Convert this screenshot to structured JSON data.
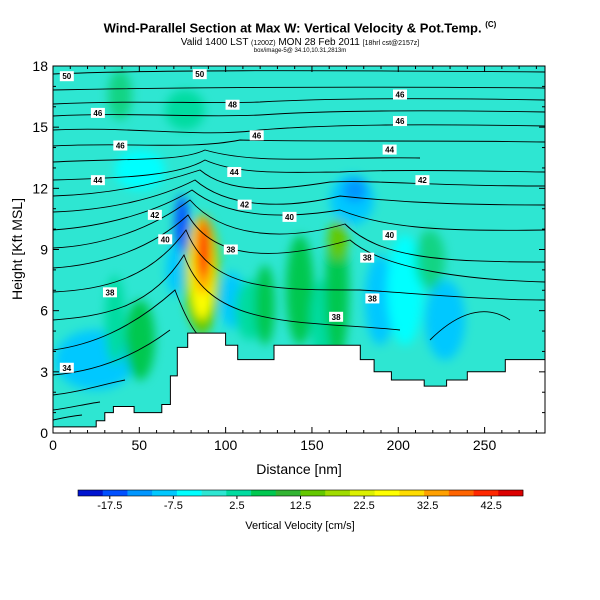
{
  "header": {
    "title": "Wind-Parallel Section at Max W: Vertical Velocity & Pot.Temp.",
    "title_tag": "(C)",
    "subtitle": "Valid 1400 LST",
    "subtitle_mid": "(1200Z)",
    "subtitle_main": "MON 28 Feb 2011",
    "subtitle_small": "[18hrl cst@2157z]",
    "meta": "box/image-5@ 34.10,10.31,2813m"
  },
  "chart_data": {
    "type": "heatmap",
    "title": "Wind-Parallel Section at Max W: Vertical Velocity & Pot.Temp.",
    "xlabel": "Distance [nm]",
    "ylabel": "Height [Kft MSL]",
    "xlim": [
      0,
      285
    ],
    "ylim": [
      0,
      18
    ],
    "xticks": [
      "0",
      "50",
      "100",
      "150",
      "200",
      "250"
    ],
    "xtick_values": [
      0,
      50,
      100,
      150,
      200,
      250
    ],
    "yticks": [
      "0",
      "3",
      "6",
      "9",
      "12",
      "15",
      "18"
    ],
    "ytick_values": [
      0,
      3,
      6,
      9,
      12,
      15,
      18
    ],
    "colorbar": {
      "label": "Vertical Velocity [cm/s]",
      "min": -22.5,
      "max": 47.5,
      "ticks": [
        "-17.5",
        "-7.5",
        "2.5",
        "12.5",
        "22.5",
        "32.5",
        "42.5"
      ],
      "tick_values": [
        -17.5,
        -7.5,
        2.5,
        12.5,
        22.5,
        32.5,
        42.5
      ],
      "colors": [
        "#0014d0",
        "#0050ff",
        "#0096ff",
        "#00c8ff",
        "#00ffff",
        "#2ee6d2",
        "#00dca0",
        "#00c850",
        "#32b432",
        "#64c800",
        "#a0dc00",
        "#dcf000",
        "#ffff00",
        "#ffdc00",
        "#ffa000",
        "#ff6400",
        "#ff2800",
        "#dc0000"
      ]
    },
    "terrain_profile": [
      {
        "x": 0,
        "y": 0.3
      },
      {
        "x": 25,
        "y": 0.3
      },
      {
        "x": 25,
        "y": 0.6
      },
      {
        "x": 30,
        "y": 0.6
      },
      {
        "x": 30,
        "y": 1.0
      },
      {
        "x": 35,
        "y": 1.0
      },
      {
        "x": 35,
        "y": 1.3
      },
      {
        "x": 47,
        "y": 1.3
      },
      {
        "x": 47,
        "y": 1.0
      },
      {
        "x": 63,
        "y": 1.0
      },
      {
        "x": 63,
        "y": 1.4
      },
      {
        "x": 68,
        "y": 1.4
      },
      {
        "x": 68,
        "y": 2.8
      },
      {
        "x": 72,
        "y": 2.8
      },
      {
        "x": 72,
        "y": 4.2
      },
      {
        "x": 78,
        "y": 4.2
      },
      {
        "x": 78,
        "y": 4.9
      },
      {
        "x": 100,
        "y": 4.9
      },
      {
        "x": 100,
        "y": 4.3
      },
      {
        "x": 107,
        "y": 4.3
      },
      {
        "x": 107,
        "y": 3.6
      },
      {
        "x": 128,
        "y": 3.6
      },
      {
        "x": 128,
        "y": 4.3
      },
      {
        "x": 178,
        "y": 4.3
      },
      {
        "x": 178,
        "y": 3.6
      },
      {
        "x": 186,
        "y": 3.6
      },
      {
        "x": 186,
        "y": 3.0
      },
      {
        "x": 196,
        "y": 3.0
      },
      {
        "x": 196,
        "y": 2.6
      },
      {
        "x": 215,
        "y": 2.6
      },
      {
        "x": 215,
        "y": 2.3
      },
      {
        "x": 228,
        "y": 2.3
      },
      {
        "x": 228,
        "y": 2.6
      },
      {
        "x": 240,
        "y": 2.6
      },
      {
        "x": 240,
        "y": 3.0
      },
      {
        "x": 262,
        "y": 3.0
      },
      {
        "x": 262,
        "y": 3.6
      },
      {
        "x": 285,
        "y": 3.6
      }
    ],
    "isentrope_labels": [
      {
        "text": "50",
        "x": 8,
        "y": 17.5
      },
      {
        "text": "50",
        "x": 85,
        "y": 17.6
      },
      {
        "text": "48",
        "x": 104,
        "y": 16.1
      },
      {
        "text": "46",
        "x": 26,
        "y": 15.7
      },
      {
        "text": "46",
        "x": 201,
        "y": 16.6
      },
      {
        "text": "46",
        "x": 201,
        "y": 15.3
      },
      {
        "text": "46",
        "x": 118,
        "y": 14.6
      },
      {
        "text": "46",
        "x": 39,
        "y": 14.1
      },
      {
        "text": "44",
        "x": 195,
        "y": 13.9
      },
      {
        "text": "44",
        "x": 105,
        "y": 12.8
      },
      {
        "text": "44",
        "x": 26,
        "y": 12.4
      },
      {
        "text": "42",
        "x": 214,
        "y": 12.4
      },
      {
        "text": "42",
        "x": 111,
        "y": 11.2
      },
      {
        "text": "42",
        "x": 59,
        "y": 10.7
      },
      {
        "text": "40",
        "x": 137,
        "y": 10.6
      },
      {
        "text": "40",
        "x": 65,
        "y": 9.5
      },
      {
        "text": "40",
        "x": 195,
        "y": 9.7
      },
      {
        "text": "38",
        "x": 103,
        "y": 9.0
      },
      {
        "text": "38",
        "x": 182,
        "y": 8.6
      },
      {
        "text": "38",
        "x": 33,
        "y": 6.9
      },
      {
        "text": "38",
        "x": 185,
        "y": 6.6
      },
      {
        "text": "38",
        "x": 164,
        "y": 5.7
      },
      {
        "text": "34",
        "x": 8,
        "y": 3.2
      }
    ]
  }
}
